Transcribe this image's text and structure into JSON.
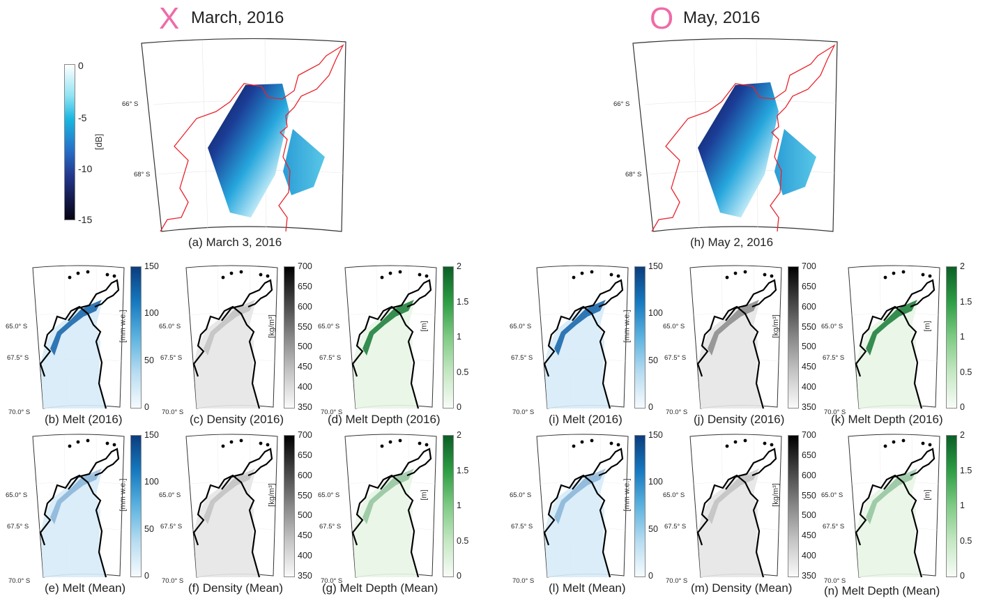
{
  "headers": {
    "left": {
      "symbol": "X",
      "title": "March, 2016",
      "symbol_color": "#f06aa8"
    },
    "right": {
      "symbol": "O",
      "title": "May, 2016",
      "symbol_color": "#f06aa8"
    }
  },
  "sar": {
    "colorbar": {
      "ticks": [
        "0",
        "-5",
        "-10",
        "-15"
      ],
      "unit": "[dB]"
    },
    "lat_labels": [
      "66° S",
      "68° S"
    ],
    "left_caption": "(a) March 3, 2016",
    "right_caption": "(h) May  2, 2016"
  },
  "panels": {
    "b": "(b) Melt (2016)",
    "c": "(c) Density (2016)",
    "d": "(d) Melt Depth (2016)",
    "e": "(e) Melt (Mean)",
    "f": "(f) Density (Mean)",
    "g": "(g) Melt Depth (Mean)",
    "i": "(i) Melt (2016)",
    "j": "(j) Density (2016)",
    "k": "(k) Melt Depth (2016)",
    "l": "(l) Melt (Mean)",
    "m": "(m) Density (Mean)",
    "n": "(n) Melt Depth (Mean)"
  },
  "map_lat_labels": [
    "65.0° S",
    "67.5° S",
    "70.0° S"
  ],
  "colorbars": {
    "melt": {
      "ticks": [
        "150",
        "100",
        "50",
        "0"
      ],
      "unit": "[mm w.e.]"
    },
    "density": {
      "ticks": [
        "700",
        "650",
        "600",
        "550",
        "500",
        "450",
        "400",
        "350"
      ],
      "unit": "[kg/m³]"
    },
    "depth": {
      "ticks": [
        "2",
        "1.5",
        "1",
        "0.5",
        "0"
      ],
      "unit": "[m]"
    }
  },
  "colors": {
    "coast_red": "#e8222a",
    "melt_dark": "#0b4a8a",
    "depth_dark": "#0e6b2a"
  }
}
